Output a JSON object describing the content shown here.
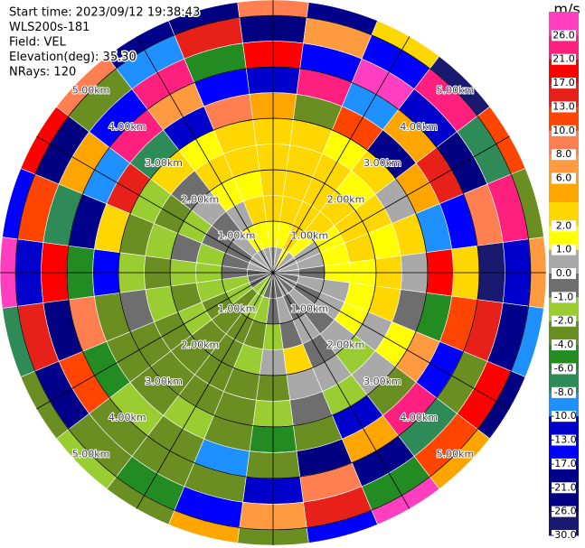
{
  "chart_data": {
    "type": "ppi",
    "info": [
      "Start time: 2023/09/12 19:38:43",
      "WLS200s-181",
      "Field: VEL",
      "Elevation(deg): 35.30",
      "NRays: 120"
    ],
    "azimuths": [
      0,
      15,
      30,
      45,
      60,
      75,
      90,
      105,
      120,
      135,
      150,
      165,
      180,
      195,
      210,
      225,
      240,
      255,
      270,
      285,
      300,
      315,
      330,
      345
    ],
    "range_edges": [
      0,
      0.5,
      1,
      1.5,
      2,
      2.5,
      3,
      3.5,
      4,
      4.5,
      5,
      5.3
    ],
    "values": [
      [
        0.5,
        1.5,
        2.5,
        2.5,
        3,
        2.5,
        5,
        -12,
        18,
        -25,
        9
      ],
      [
        0.5,
        1.5,
        2.5,
        3,
        2.5,
        3,
        -3,
        24,
        -15,
        7,
        -19
      ],
      [
        1.5,
        2.5,
        2.5,
        3,
        3,
        1.5,
        11,
        -9,
        27,
        -14,
        3
      ],
      [
        0.5,
        1.5,
        2.5,
        2.5,
        1.5,
        3,
        -18,
        5,
        -11,
        22,
        -27
      ],
      [
        0.5,
        0.5,
        1.5,
        2.5,
        2.5,
        0.5,
        4,
        14,
        -23,
        -7,
        12
      ],
      [
        0.5,
        0.5,
        1.5,
        2.5,
        1.5,
        3,
        -9,
        -16,
        8,
        25,
        -3
      ],
      [
        0.5,
        -0.5,
        1.5,
        1.5,
        2.5,
        0.5,
        19,
        3,
        -28,
        -12,
        7
      ],
      [
        -0.5,
        0.5,
        0.5,
        1.5,
        2.5,
        -0.5,
        -5,
        11,
        16,
        -20,
        -9
      ],
      [
        0.5,
        -0.5,
        0.5,
        1.5,
        0.5,
        1.5,
        7,
        -14,
        -3,
        20,
        -24
      ],
      [
        -0.5,
        0.5,
        -0.5,
        0.5,
        -1.5,
        0.5,
        -2.5,
        23,
        -8,
        12,
        5
      ],
      [
        0.5,
        -0.5,
        0.5,
        -0.5,
        0.5,
        -1.5,
        -11,
        5,
        -18,
        -5,
        28
      ],
      [
        -0.5,
        0.5,
        -0.5,
        2.5,
        0.5,
        -0.5,
        -3,
        -22,
        9,
        14,
        -15
      ],
      [
        -0.5,
        -0.5,
        -1.5,
        0.5,
        -2.5,
        -1.5,
        -5,
        -3,
        -13,
        7,
        -3
      ],
      [
        -0.5,
        -1.5,
        -2.5,
        -1.5,
        -3,
        -2.5,
        -3,
        -9,
        -3,
        -16,
        4
      ],
      [
        -1.5,
        -1.5,
        -3,
        -2.5,
        -3,
        -2.5,
        -1.5,
        -3,
        -2.5,
        -5,
        -3
      ],
      [
        -1.5,
        -2.5,
        -2.5,
        -3,
        -2.5,
        -3,
        -2.5,
        -1.5,
        -3,
        -3,
        -1.5
      ],
      [
        -0.5,
        -1.5,
        -2.5,
        -1.5,
        -3,
        -2.5,
        -3,
        -5,
        12,
        -18,
        -3
      ],
      [
        -0.5,
        -1.5,
        -1.5,
        -2.5,
        -1.5,
        -0.5,
        -2.5,
        9,
        -24,
        15,
        -7
      ],
      [
        -0.5,
        -0.5,
        -1.5,
        -1.5,
        -2.5,
        -1.5,
        -14,
        -5,
        20,
        -11,
        26
      ],
      [
        0.5,
        -0.5,
        -1.5,
        -0.5,
        -1.5,
        -3,
        3,
        -19,
        -8,
        11,
        -15
      ],
      [
        0.5,
        -0.5,
        -0.5,
        -1.5,
        -2.5,
        -1.5,
        15,
        -10,
        5,
        -23,
        18
      ],
      [
        0.5,
        0.5,
        -0.5,
        0.5,
        -0.5,
        2.5,
        -7,
        21,
        -16,
        -4,
        9
      ],
      [
        0.5,
        1.5,
        0.5,
        1.5,
        2.5,
        1.5,
        -13,
        6,
        25,
        -9,
        -20
      ],
      [
        0.5,
        1.5,
        2.5,
        1.5,
        2.5,
        3,
        8,
        -17,
        -5,
        13,
        -26
      ]
    ],
    "rlim": [
      0,
      5.3
    ],
    "rticks": [
      {
        "value": 1,
        "label": "1.00km"
      },
      {
        "value": 2,
        "label": "2.00km"
      },
      {
        "value": 3,
        "label": "3.00km"
      },
      {
        "value": 4,
        "label": "4.00km"
      },
      {
        "value": 5,
        "label": "5.00km"
      }
    ],
    "colorbar": {
      "unit": "m/s",
      "bounds": [
        30,
        26,
        21,
        17,
        13,
        10,
        8,
        6,
        4,
        2,
        1,
        0,
        -1,
        -2,
        -4,
        -6,
        -8,
        -10,
        -13,
        -17,
        -21,
        -26,
        -30
      ],
      "colors": [
        "#ff3fbf",
        "#ff1f7f",
        "#ff0000",
        "#e8201a",
        "#ff4500",
        "#ff7f50",
        "#ff9a40",
        "#ffa500",
        "#ffd700",
        "#ffff00",
        "#a9a9a9",
        "#6e6e6e",
        "#9acd32",
        "#6b8e23",
        "#228b22",
        "#2e8b57",
        "#1e90ff",
        "#0000cd",
        "#0000ff",
        "#00008b",
        "#000080",
        "#191970"
      ],
      "ticks": [
        {
          "value": 26,
          "label": "26.0"
        },
        {
          "value": 21,
          "label": "21.0"
        },
        {
          "value": 17,
          "label": "17.0"
        },
        {
          "value": 13,
          "label": "13.0"
        },
        {
          "value": 10,
          "label": "10.0"
        },
        {
          "value": 8,
          "label": "8.0"
        },
        {
          "value": 6,
          "label": "6.0"
        },
        {
          "value": 2,
          "label": "2.0"
        },
        {
          "value": 1,
          "label": "1.0"
        },
        {
          "value": 0,
          "label": "0.0"
        },
        {
          "value": -1,
          "label": "-1.0"
        },
        {
          "value": -2,
          "label": "-2.0"
        },
        {
          "value": -4,
          "label": "-4.0"
        },
        {
          "value": -6,
          "label": "-6.0"
        },
        {
          "value": -8,
          "label": "-8.0"
        },
        {
          "value": -10,
          "label": "-10.0"
        },
        {
          "value": -13,
          "label": "-13.0"
        },
        {
          "value": -17,
          "label": "-17.0"
        },
        {
          "value": -21,
          "label": "-21.0"
        },
        {
          "value": -26,
          "label": "-26.0"
        },
        {
          "value": -30,
          "label": "-30.0"
        }
      ]
    }
  }
}
